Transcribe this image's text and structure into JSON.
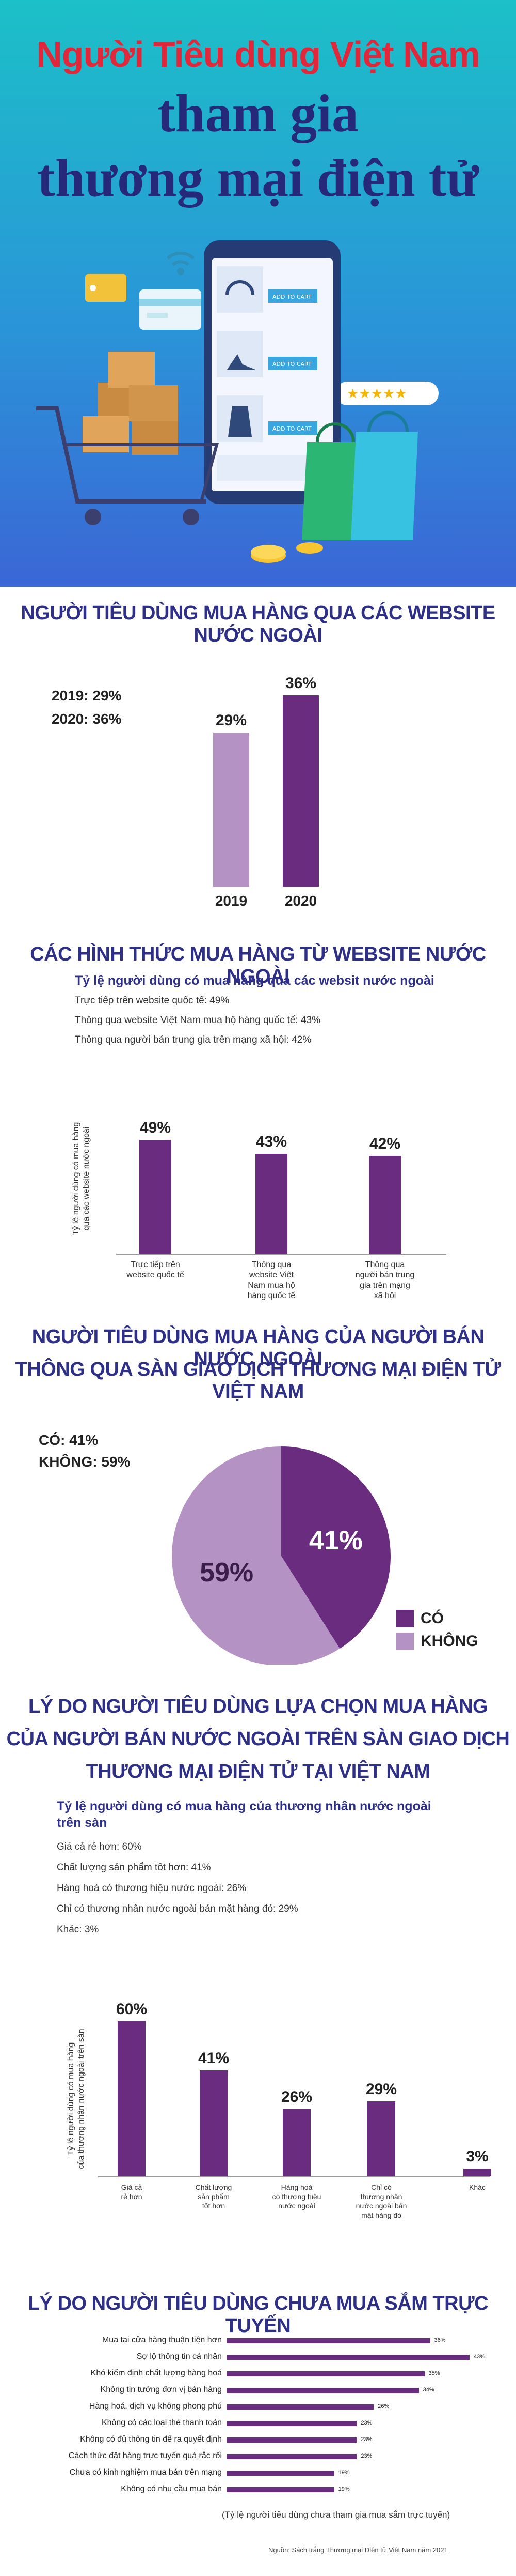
{
  "header": {
    "line1": "Người Tiêu dùng Việt Nam",
    "line2": "tham gia",
    "line3": "thương mại điện tử",
    "add_to_cart": "ADD TO CART"
  },
  "section1": {
    "title": "NGƯỜI TIÊU DÙNG MUA HÀNG QUA CÁC WEBSITE NƯỚC NGOÀI",
    "legend_2019": "2019: 29%",
    "legend_2020": "2020: 36%"
  },
  "section2": {
    "title": "CÁC HÌNH THỨC MUA HÀNG TỪ WEBSITE NƯỚC NGOÀI",
    "subtitle": "Tỷ lệ người dùng có mua hàng qua các websit nước ngoài",
    "notes": [
      "Trực tiếp trên website quốc tế: 49%",
      "Thông qua website Việt Nam mua hộ hàng quốc tế: 43%",
      "Thông qua người bán trung gia trên mạng xã hội: 42%"
    ],
    "ylabel_line1": "Tỷ lệ người dùng có mua hàng",
    "ylabel_line2": "qua các website nước ngoài"
  },
  "section3": {
    "title_line1": "NGƯỜI TIÊU DÙNG MUA HÀNG CỦA NGƯỜI BÁN NƯỚC NGOÀI",
    "title_line2": "THÔNG QUA SÀN GIAO DỊCH THƯƠNG MẠI ĐIỆN TỬ VIỆT NAM",
    "summary_yes": "CÓ: 41%",
    "summary_no": "KHÔNG: 59%"
  },
  "section4": {
    "title_line1": "LÝ DO NGƯỜI TIÊU DÙNG LỰA CHỌN MUA HÀNG",
    "title_line2": "CỦA NGƯỜI BÁN NƯỚC NGOÀI TRÊN SÀN GIAO DỊCH",
    "title_line3": "THƯƠNG MẠI ĐIỆN TỬ TẠI VIỆT NAM",
    "subtitle_line1": "Tỷ lệ người dùng có mua hàng của thương nhân nước ngoài",
    "subtitle_line2": "trên sàn",
    "notes": [
      "Giá cả rẻ hơn: 60%",
      "Chất lượng sản phẩm tốt hơn: 41%",
      "Hàng hoá có thương hiệu nước ngoài: 26%",
      "Chỉ có thương nhân nước ngoài bán mặt hàng đó: 29%",
      "Khác: 3%"
    ],
    "ylabel_line1": "Tỷ lệ người dùng có mua hàng",
    "ylabel_line2": "của thương nhân nước ngoài trên sàn"
  },
  "section5": {
    "title": "LÝ DO NGƯỜI TIÊU DÙNG CHƯA MUA SẮM TRỰC TUYẾN",
    "caption": "(Tỷ lệ người tiêu dùng chưa tham gia mua sắm trực tuyến)",
    "source": "Nguồn: Sách trắng Thương mại Điện tử Việt Nam năm 2021"
  },
  "colors": {
    "accent": "#6a2c7e",
    "light": "#b592c4",
    "title": "#2e2f86",
    "hero_red": "#e0283a"
  },
  "chart_data": [
    {
      "type": "bar",
      "title": "NGƯỜI TIÊU DÙNG MUA HÀNG QUA CÁC WEBSITE NƯỚC NGOÀI",
      "categories": [
        "2019",
        "2020"
      ],
      "values": [
        29,
        36
      ],
      "data_labels": [
        "29%",
        "36%"
      ],
      "colors": [
        "#b592c4",
        "#6a2c7e"
      ]
    },
    {
      "type": "bar",
      "title": "CÁC HÌNH THỨC MUA HÀNG TỪ WEBSITE NƯỚC NGOÀI",
      "categories": [
        "Trực tiếp trên website quốc tế",
        "Thông qua website Việt Nam mua hộ hàng quốc tế",
        "Thông qua người bán trung gia trên mạng xã hội"
      ],
      "values": [
        49,
        43,
        42
      ],
      "data_labels": [
        "49%",
        "43%",
        "42%"
      ]
    },
    {
      "type": "pie",
      "categories": [
        "CÓ",
        "KHÔNG"
      ],
      "values": [
        41,
        59
      ],
      "data_labels": [
        "41%",
        "59%"
      ],
      "colors": [
        "#6a2c7e",
        "#b592c4"
      ],
      "legend": "bottom-right"
    },
    {
      "type": "bar",
      "title": "Tỷ lệ người dùng có mua hàng của thương nhân nước ngoài trên sàn",
      "categories": [
        "Giá cả rẻ hơn",
        "Chất lượng sản phẩm tốt hơn",
        "Hàng hoá có thương hiệu nước ngoài",
        "Chỉ có thương nhân nước ngoài bán mặt hàng đó",
        "Khác"
      ],
      "values": [
        60,
        41,
        26,
        29,
        3
      ],
      "data_labels": [
        "60%",
        "41%",
        "26%",
        "29%",
        "3%"
      ]
    },
    {
      "type": "bar",
      "orientation": "horizontal",
      "title": "LÝ DO NGƯỜI TIÊU DÙNG CHƯA MUA SẮM TRỰC TUYẾN",
      "categories": [
        "Mua tại cửa hàng thuận tiện hơn",
        "Sợ lộ thông tin cá nhân",
        "Khó kiểm định chất lượng hàng hoá",
        "Không tin tưởng đơn vị bán hàng",
        "Hàng hoá, dịch vụ không phong phú",
        "Không có các loại thẻ thanh toán",
        "Không có đủ thông tin để ra quyết định",
        "Cách thức đặt hàng trực tuyến quá rắc rối",
        "Chưa có kinh nghiệm mua bán trên mạng",
        "Không có nhu cầu mua bán"
      ],
      "values": [
        36,
        43,
        35,
        34,
        26,
        23,
        23,
        23,
        19,
        19
      ],
      "data_labels": [
        "36%",
        "43%",
        "35%",
        "34%",
        "26%",
        "23%",
        "23%",
        "23%",
        "19%",
        "19%"
      ]
    }
  ]
}
